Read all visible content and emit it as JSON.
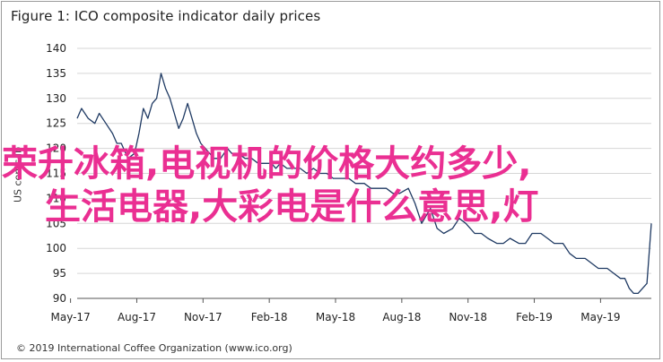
{
  "chart_data": {
    "type": "line",
    "title": "Figure 1: ICO composite indicator daily prices",
    "ylabel": "US cents/lb",
    "xlabel": "",
    "ylim": [
      90,
      140
    ],
    "yticks": [
      90,
      95,
      100,
      105,
      110,
      115,
      120,
      125,
      130,
      135,
      140
    ],
    "xticks": [
      "May-17",
      "Aug-17",
      "Nov-17",
      "Feb-18",
      "May-18",
      "Aug-18",
      "Nov-18",
      "Feb-19",
      "May-19"
    ],
    "grid": true,
    "series": [
      {
        "color": "#1f3a63",
        "x": [
          0,
          0.2,
          0.5,
          0.8,
          1.0,
          1.3,
          1.6,
          1.8,
          2.0,
          2.3,
          2.6,
          2.8,
          3.0,
          3.2,
          3.4,
          3.6,
          3.8,
          4.0,
          4.2,
          4.4,
          4.6,
          4.8,
          5.0,
          5.2,
          5.4,
          5.6,
          5.8,
          6.0,
          6.2,
          6.5,
          6.8,
          7.0,
          7.3,
          7.6,
          7.9,
          8.2,
          8.5,
          8.8,
          9.0,
          9.2,
          9.5,
          9.8,
          10.1,
          10.4,
          10.7,
          11.0,
          11.3,
          11.6,
          12.0,
          12.3,
          12.6,
          13.0,
          13.3,
          13.6,
          14.0,
          14.3,
          14.6,
          15.0,
          15.3,
          15.6,
          16.0,
          16.3,
          16.6,
          17.0,
          17.3,
          17.6,
          18.0,
          18.3,
          18.6,
          19.0,
          19.3,
          19.6,
          20.0,
          20.3,
          20.6,
          21.0,
          21.3,
          21.6,
          22.0,
          22.3,
          22.6,
          23.0,
          23.3,
          23.6,
          24.0,
          24.3,
          24.6,
          24.8,
          25.0,
          25.2,
          25.4,
          25.6,
          25.8,
          26.0
        ],
        "values": [
          126,
          128,
          126,
          125,
          127,
          125,
          123,
          121,
          121,
          118,
          119,
          123,
          128,
          126,
          129,
          130,
          135,
          132,
          130,
          127,
          124,
          126,
          129,
          126,
          123,
          121,
          120,
          119,
          118,
          118,
          120,
          119,
          119,
          118,
          118,
          117,
          117,
          117,
          116,
          117,
          116,
          116,
          116,
          115,
          116,
          115,
          115,
          114,
          114,
          114,
          113,
          113,
          112,
          112,
          112,
          111,
          111,
          112,
          109,
          105,
          108,
          104,
          103,
          104,
          106,
          105,
          103,
          103,
          102,
          101,
          101,
          102,
          101,
          101,
          103,
          103,
          102,
          101,
          101,
          99,
          98,
          98,
          97,
          96,
          96,
          95,
          94,
          94,
          92,
          91,
          91,
          92,
          93,
          105
        ]
      }
    ],
    "annotation": "© 2019 International Coffee Organization (www.ico.org)"
  },
  "overlay": {
    "line1": "荣升冰箱,电视机的价格大约多少,",
    "line2": "生活电器,大彩电是什么意思,灯"
  }
}
